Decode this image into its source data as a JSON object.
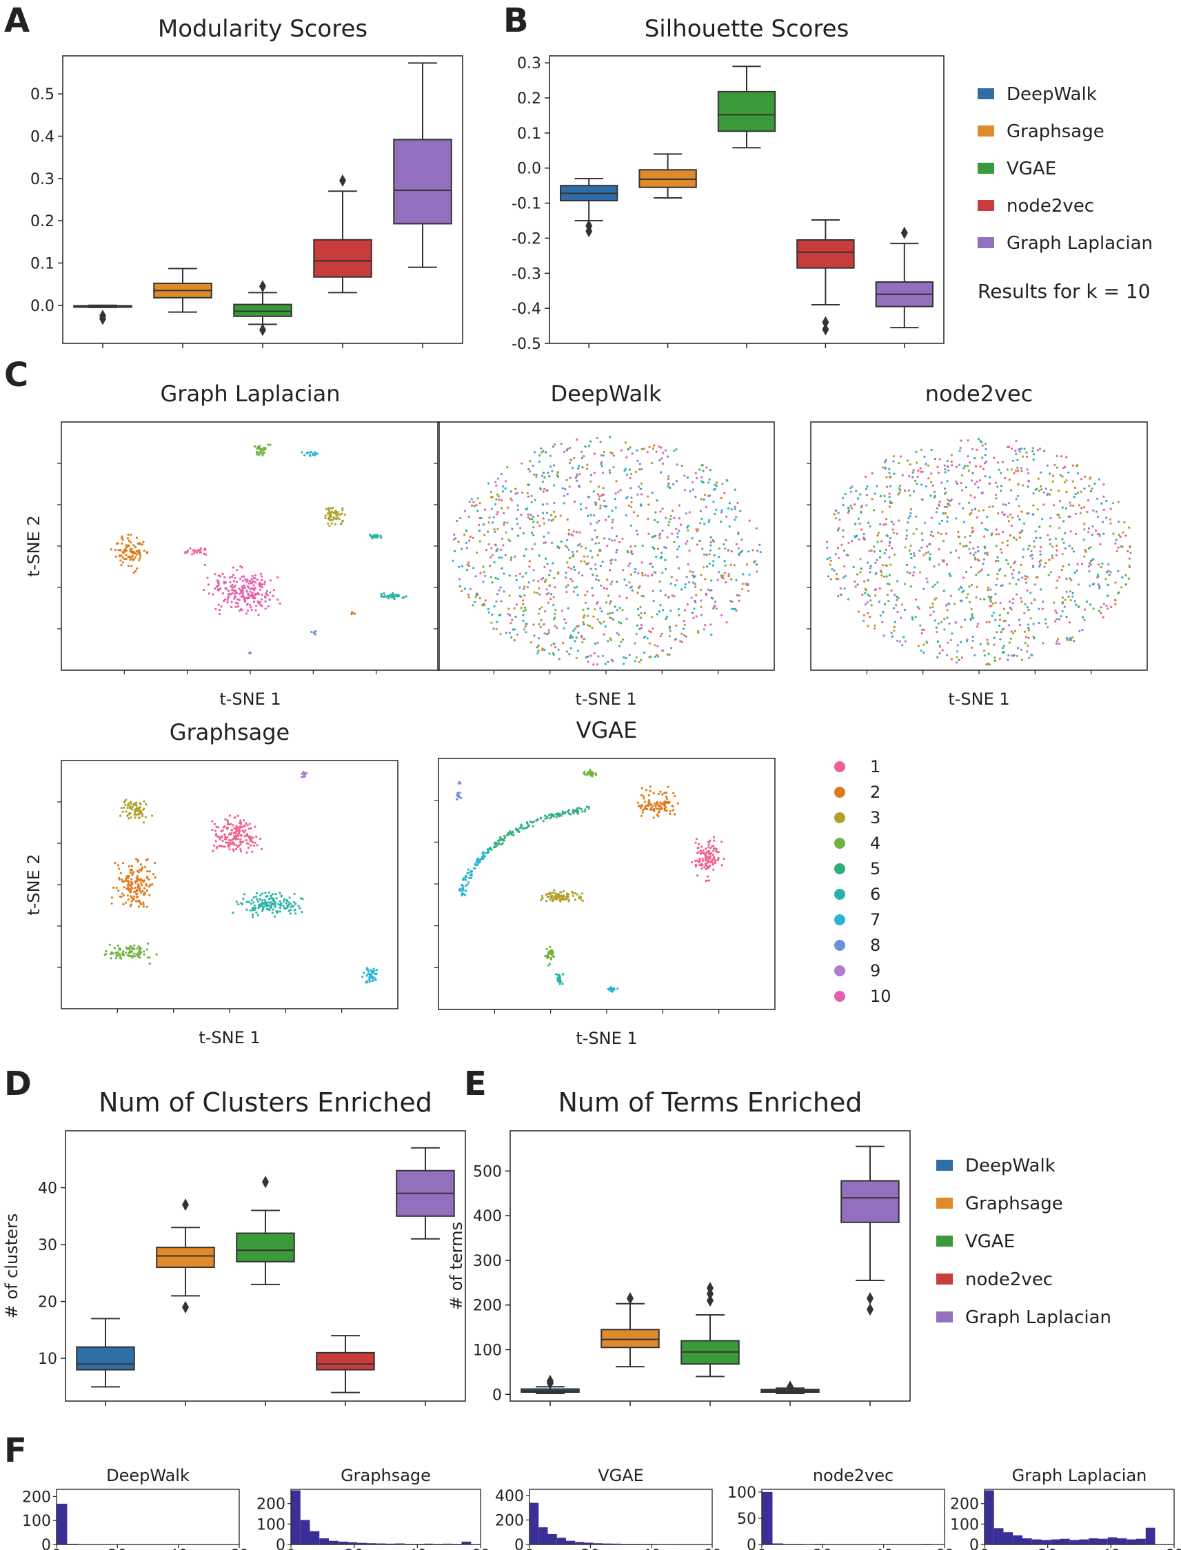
{
  "panel_letters": {
    "a": "A",
    "b": "B",
    "c": "C",
    "d": "D",
    "e": "E",
    "f": "F"
  },
  "colors": {
    "DeepWalk": "#2f6ea6",
    "Graphsage": "#e08a2b",
    "VGAE": "#3a9a3a",
    "node2vec": "#c93c3c",
    "Graph Laplacian": "#9370bd",
    "clusters": [
      "#f0608a",
      "#e07b1c",
      "#b0a12a",
      "#6fb33c",
      "#2bb07a",
      "#28b5a8",
      "#29b6d4",
      "#6f90d8",
      "#b07ad1",
      "#e85fae"
    ],
    "hist": "#3a2f96"
  },
  "legend_methods": [
    "DeepWalk",
    "Graphsage",
    "VGAE",
    "node2vec",
    "Graph Laplacian"
  ],
  "note": "Results for k = 10",
  "cluster_legend": [
    "1",
    "2",
    "3",
    "4",
    "5",
    "6",
    "7",
    "8",
    "9",
    "10"
  ],
  "chart_data": [
    {
      "id": "A",
      "type": "box",
      "title": "Modularity Scores",
      "ylabel": "",
      "ylim": [
        -0.09,
        0.59
      ],
      "yticks": [
        0.0,
        0.1,
        0.2,
        0.3,
        0.4,
        0.5
      ],
      "ytick_labels": [
        "0.0",
        "0.1",
        "0.2",
        "0.3",
        "0.4",
        "0.5"
      ],
      "series": [
        {
          "name": "DeepWalk",
          "whislo": -0.005,
          "q1": -0.004,
          "med": -0.002,
          "q3": -0.001,
          "whishi": 0.0,
          "fliers": [
            -0.025,
            -0.032
          ]
        },
        {
          "name": "Graphsage",
          "whislo": -0.016,
          "q1": 0.018,
          "med": 0.035,
          "q3": 0.052,
          "whishi": 0.087,
          "fliers": []
        },
        {
          "name": "VGAE",
          "whislo": -0.045,
          "q1": -0.026,
          "med": -0.014,
          "q3": 0.002,
          "whishi": 0.03,
          "fliers": [
            0.045,
            -0.058
          ]
        },
        {
          "name": "node2vec",
          "whislo": 0.03,
          "q1": 0.067,
          "med": 0.105,
          "q3": 0.155,
          "whishi": 0.27,
          "fliers": [
            0.295
          ]
        },
        {
          "name": "Graph Laplacian",
          "whislo": 0.09,
          "q1": 0.193,
          "med": 0.272,
          "q3": 0.392,
          "whishi": 0.573,
          "fliers": []
        }
      ]
    },
    {
      "id": "B",
      "type": "box",
      "title": "Silhouette Scores",
      "ylabel": "",
      "ylim": [
        -0.5,
        0.32
      ],
      "yticks": [
        0.3,
        0.2,
        0.1,
        0.0,
        -0.1,
        -0.2,
        -0.3,
        -0.4,
        -0.5
      ],
      "ytick_labels": [
        "0.3",
        "0.2",
        "0.1",
        "0.0",
        "-0.1",
        "-0.2",
        "-0.3",
        "-0.4",
        "-0.5"
      ],
      "series": [
        {
          "name": "DeepWalk",
          "whislo": -0.15,
          "q1": -0.093,
          "med": -0.072,
          "q3": -0.05,
          "whishi": -0.03,
          "fliers": [
            -0.165,
            -0.18
          ]
        },
        {
          "name": "Graphsage",
          "whislo": -0.085,
          "q1": -0.055,
          "med": -0.032,
          "q3": -0.005,
          "whishi": 0.04,
          "fliers": []
        },
        {
          "name": "VGAE",
          "whislo": 0.058,
          "q1": 0.105,
          "med": 0.152,
          "q3": 0.218,
          "whishi": 0.29,
          "fliers": []
        },
        {
          "name": "node2vec",
          "whislo": -0.39,
          "q1": -0.285,
          "med": -0.24,
          "q3": -0.205,
          "whishi": -0.148,
          "fliers": [
            -0.44,
            -0.46
          ]
        },
        {
          "name": "Graph Laplacian",
          "whislo": -0.455,
          "q1": -0.395,
          "med": -0.36,
          "q3": -0.325,
          "whishi": -0.215,
          "fliers": [
            -0.185
          ]
        }
      ]
    },
    {
      "id": "C1",
      "type": "scatter",
      "title": "Graph Laplacian",
      "xlabel": "t-SNE 1",
      "ylabel": "t-SNE 2",
      "pattern": "clusters_laplacian"
    },
    {
      "id": "C2",
      "type": "scatter",
      "title": "DeepWalk",
      "xlabel": "t-SNE 1",
      "ylabel": "",
      "pattern": "uniform"
    },
    {
      "id": "C3",
      "type": "scatter",
      "title": "node2vec",
      "xlabel": "t-SNE 1",
      "ylabel": "",
      "pattern": "uniform"
    },
    {
      "id": "C4",
      "type": "scatter",
      "title": "Graphsage",
      "xlabel": "t-SNE 1",
      "ylabel": "t-SNE 2",
      "pattern": "clusters_graphsage"
    },
    {
      "id": "C5",
      "type": "scatter",
      "title": "VGAE",
      "xlabel": "t-SNE 1",
      "ylabel": "",
      "pattern": "clusters_vgae"
    },
    {
      "id": "D",
      "type": "box",
      "title": "Num of Clusters Enriched",
      "ylabel": "# of clusters",
      "ylim": [
        2.5,
        50
      ],
      "yticks": [
        10,
        20,
        30,
        40
      ],
      "ytick_labels": [
        "10",
        "20",
        "30",
        "40"
      ],
      "series": [
        {
          "name": "DeepWalk",
          "whislo": 5,
          "q1": 8,
          "med": 9,
          "q3": 12,
          "whishi": 17,
          "fliers": []
        },
        {
          "name": "Graphsage",
          "whislo": 21,
          "q1": 26,
          "med": 28,
          "q3": 29.5,
          "whishi": 33,
          "fliers": [
            37,
            19
          ]
        },
        {
          "name": "VGAE",
          "whislo": 23,
          "q1": 27,
          "med": 29,
          "q3": 32,
          "whishi": 36,
          "fliers": [
            41
          ]
        },
        {
          "name": "node2vec",
          "whislo": 4,
          "q1": 8,
          "med": 9,
          "q3": 11,
          "whishi": 14,
          "fliers": []
        },
        {
          "name": "Graph Laplacian",
          "whislo": 31,
          "q1": 35,
          "med": 39,
          "q3": 43,
          "whishi": 47,
          "fliers": []
        }
      ]
    },
    {
      "id": "E",
      "type": "box",
      "title": "Num of Terms Enriched",
      "ylabel": "# of terms",
      "ylim": [
        -15,
        590
      ],
      "yticks": [
        0,
        100,
        200,
        300,
        400,
        500
      ],
      "ytick_labels": [
        "0",
        "100",
        "200",
        "300",
        "400",
        "500"
      ],
      "series": [
        {
          "name": "DeepWalk",
          "whislo": 2,
          "q1": 5,
          "med": 8,
          "q3": 12,
          "whishi": 17,
          "fliers": [
            25,
            30
          ]
        },
        {
          "name": "Graphsage",
          "whislo": 62,
          "q1": 105,
          "med": 123,
          "q3": 145,
          "whishi": 203,
          "fliers": [
            215
          ]
        },
        {
          "name": "VGAE",
          "whislo": 40,
          "q1": 68,
          "med": 95,
          "q3": 120,
          "whishi": 178,
          "fliers": [
            210,
            225,
            238
          ]
        },
        {
          "name": "node2vec",
          "whislo": 2,
          "q1": 5,
          "med": 8,
          "q3": 11,
          "whishi": 14,
          "fliers": [
            17
          ]
        },
        {
          "name": "Graph Laplacian",
          "whislo": 255,
          "q1": 385,
          "med": 440,
          "q3": 478,
          "whishi": 555,
          "fliers": [
            215,
            190
          ]
        }
      ]
    },
    {
      "id": "F1",
      "type": "bar",
      "title": "DeepWalk",
      "xlim": [
        0,
        60
      ],
      "ylim": [
        0,
        230
      ],
      "yticks": [
        0,
        100,
        200
      ],
      "ytick_labels": [
        "0",
        "100",
        "200"
      ],
      "xticks": [
        "0",
        "20",
        "40",
        "60"
      ],
      "bin_width": 3.5,
      "values": [
        170,
        3,
        1,
        1,
        0,
        1,
        0,
        0,
        0,
        0,
        0,
        1,
        0,
        0,
        0,
        1,
        0
      ]
    },
    {
      "id": "F2",
      "type": "bar",
      "title": "Graphsage",
      "xlim": [
        0,
        60
      ],
      "ylim": [
        0,
        270
      ],
      "yticks": [
        0,
        100,
        200
      ],
      "ytick_labels": [
        "0",
        "100",
        "200"
      ],
      "xticks": [
        "0",
        "20",
        "40",
        "60"
      ],
      "bin_width": 3,
      "values": [
        265,
        120,
        65,
        30,
        18,
        14,
        11,
        8,
        6,
        5,
        4,
        5,
        3,
        3,
        4,
        3,
        4,
        3,
        14,
        2
      ]
    },
    {
      "id": "F3",
      "type": "bar",
      "title": "VGAE",
      "xlim": [
        0,
        60
      ],
      "ylim": [
        0,
        450
      ],
      "yticks": [
        0,
        200,
        400
      ],
      "ytick_labels": [
        "0",
        "200",
        "400"
      ],
      "xticks": [
        "0",
        "20",
        "40",
        "60"
      ],
      "bin_width": 3,
      "values": [
        340,
        140,
        85,
        55,
        30,
        20,
        15,
        10,
        8,
        7,
        5,
        5,
        4,
        4,
        3,
        3,
        2,
        2
      ]
    },
    {
      "id": "F4",
      "type": "bar",
      "title": "node2vec",
      "xlim": [
        0,
        60
      ],
      "ylim": [
        0,
        105
      ],
      "yticks": [
        0,
        50,
        100
      ],
      "ytick_labels": [
        "0",
        "50",
        "100"
      ],
      "xticks": [
        "0",
        "20",
        "40",
        "60"
      ],
      "bin_width": 3.5,
      "values": [
        100,
        2,
        1,
        1,
        0,
        1,
        0,
        0,
        0,
        0,
        0,
        0,
        0,
        0,
        0,
        1,
        0
      ]
    },
    {
      "id": "F5",
      "type": "bar",
      "title": "Graph Laplacian",
      "xlim": [
        0,
        60
      ],
      "ylim": [
        0,
        270
      ],
      "yticks": [
        0,
        100,
        200
      ],
      "ytick_labels": [
        "0",
        "100",
        "200"
      ],
      "xticks": [
        "0",
        "20",
        "40",
        "60"
      ],
      "bin_width": 3,
      "values": [
        265,
        80,
        60,
        45,
        30,
        25,
        22,
        25,
        28,
        22,
        25,
        30,
        28,
        35,
        30,
        25,
        28,
        82
      ]
    }
  ]
}
